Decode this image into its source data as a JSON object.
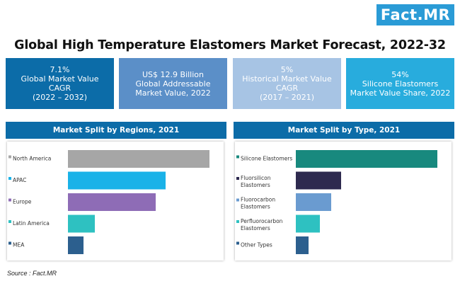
{
  "logo": "Fact.MR",
  "title": "Global High Temperature Elastomers Market Forecast, 2022-32",
  "kpis": [
    {
      "lines": [
        "7.1%",
        "Global Market Value",
        "CAGR",
        "(2022 – 2032)"
      ]
    },
    {
      "lines": [
        "US$ 12.9 Billion",
        "Global Addressable",
        "Market Value, 2022"
      ]
    },
    {
      "lines": [
        "5%",
        "Historical Market Value",
        "CAGR",
        "(2017 – 2021)"
      ]
    },
    {
      "lines": [
        "54%",
        "Silicone Elastomers",
        "Market Value Share, 2022"
      ]
    }
  ],
  "source": "Source : Fact.MR",
  "chart_data": [
    {
      "type": "bar",
      "title": "Market Split by Regions, 2021",
      "categories": [
        "North America",
        "APAC",
        "Europe",
        "Latin America",
        "MEA"
      ],
      "values": [
        100,
        69,
        62,
        19,
        11
      ],
      "colors": [
        "#a6a6a6",
        "#1ab2e8",
        "#8e6cb6",
        "#2ec1c1",
        "#2c5f8e"
      ],
      "xlim": [
        0,
        100
      ]
    },
    {
      "type": "bar",
      "title": "Market Split by Type, 2021",
      "categories": [
        "Silicone Elastomers",
        "Fluorsilicon Elastomers",
        "Fluorocarbon Elastomers",
        "Perfluorocarbon Elastomers",
        "Other Types"
      ],
      "values": [
        100,
        32,
        25,
        17,
        9
      ],
      "colors": [
        "#18897e",
        "#2e2a4f",
        "#6a9bd0",
        "#2ec1c1",
        "#2c5f8e"
      ],
      "xlim": [
        0,
        100
      ]
    }
  ]
}
